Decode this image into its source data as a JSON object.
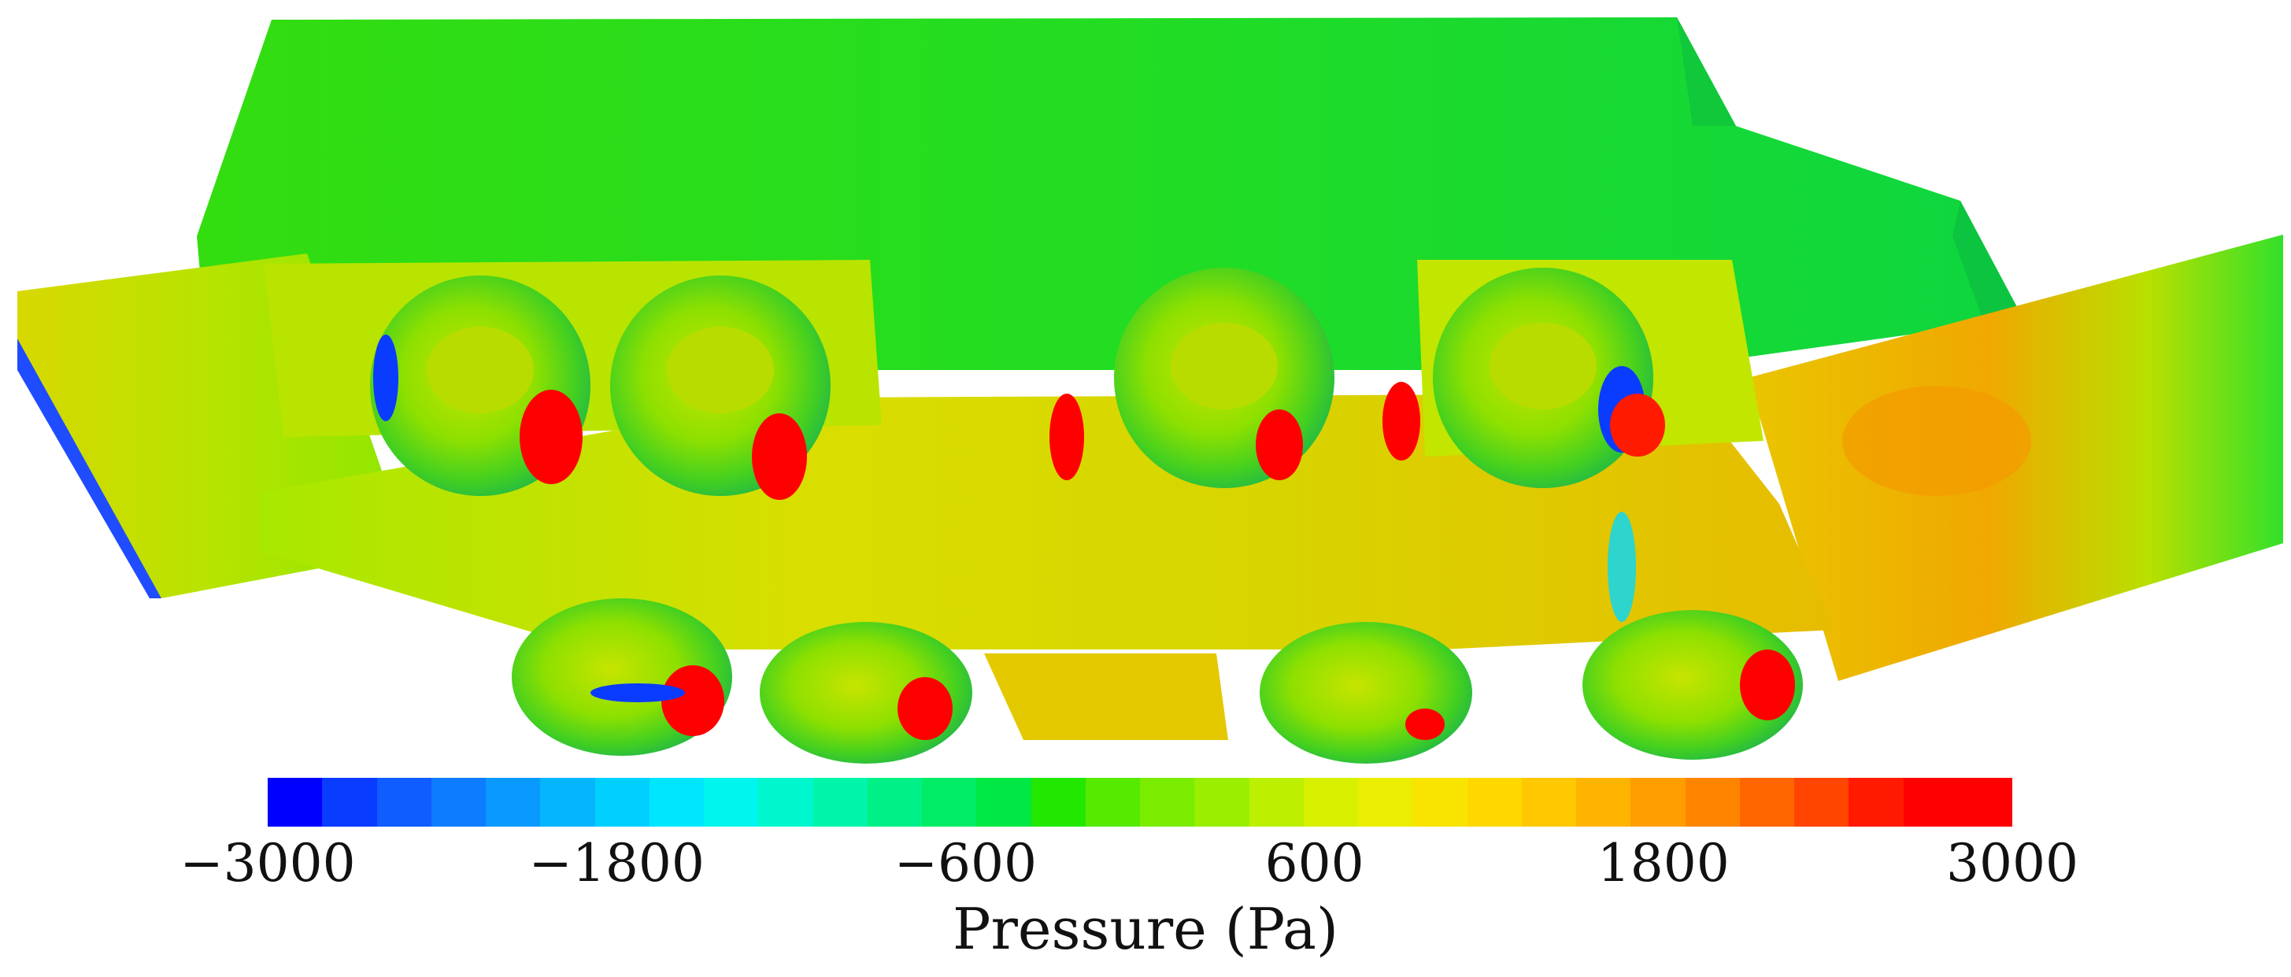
{
  "figure": {
    "subject": "pressure-contour-vehicle-underbody",
    "colorbar": {
      "min": -3000,
      "max": 3000,
      "tick_labels": [
        "−3000",
        "−1800",
        "−600",
        "600",
        "1800",
        "3000"
      ],
      "tick_values": [
        -3000,
        -1800,
        -600,
        600,
        1800,
        3000
      ],
      "title": "Pressure (Pa)",
      "colors": [
        "#0000ff",
        "#0a3cff",
        "#0f5cff",
        "#0e7cff",
        "#0a99ff",
        "#05b6ff",
        "#00d0ff",
        "#00e6ff",
        "#00f5ee",
        "#00f6cc",
        "#00f5aa",
        "#00f088",
        "#00ec66",
        "#00e844",
        "#22e800",
        "#55ea00",
        "#7aec00",
        "#9aee00",
        "#bcf000",
        "#d6f000",
        "#eaee00",
        "#f8e400",
        "#ffd800",
        "#ffc800",
        "#ffb400",
        "#ff9e00",
        "#ff8400",
        "#ff6600",
        "#ff4500",
        "#ff1a00",
        "#ff0000",
        "#ff0000"
      ]
    }
  }
}
